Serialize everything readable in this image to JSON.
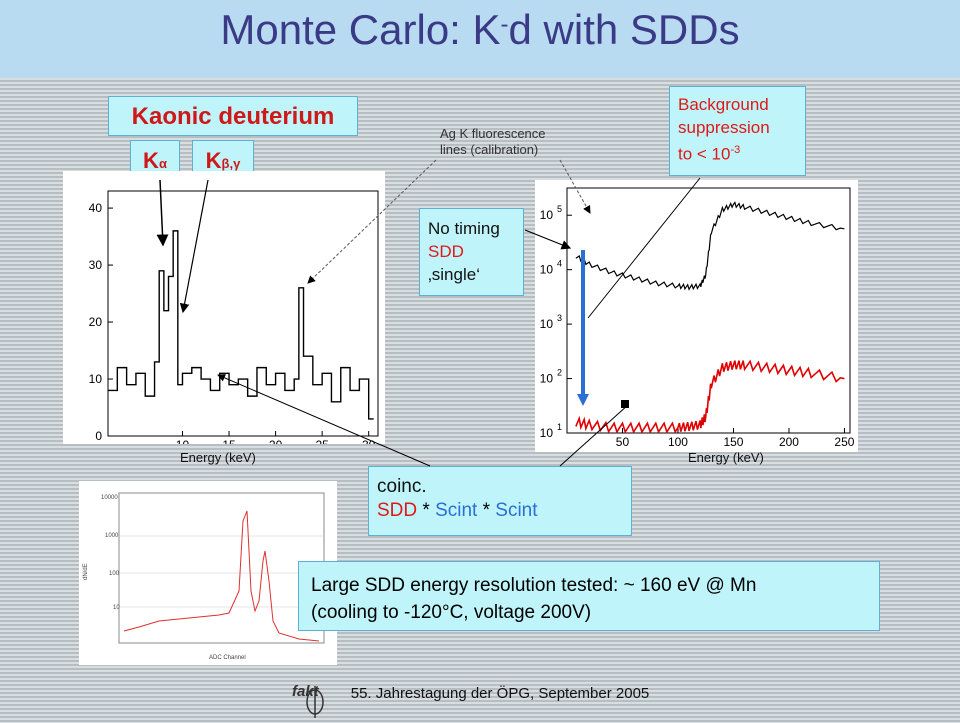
{
  "title": {
    "main": "Monte Carlo: K",
    "sub": "-",
    "rest": "d with SDDs"
  },
  "kaonic_label": "Kaonic deuterium",
  "k_alpha": {
    "letter": "K",
    "sub": "α"
  },
  "k_beta": {
    "letter": "K",
    "sub": "β,γ"
  },
  "ag_note": [
    "Ag K  fluorescence",
    "lines (calibration)"
  ],
  "background_box": {
    "line1": "Background",
    "line2": "suppression",
    "line3": "to < 10",
    "exponent": "-3"
  },
  "no_timing_box": {
    "line1": "No timing",
    "line2": "SDD",
    "line3": "‚single‘"
  },
  "coinc_box": {
    "line1": "coinc.",
    "sdd": "SDD",
    "star1": " * ",
    "scint1": "Scint",
    "star2": " * ",
    "scint2": "Scint"
  },
  "resolution_box": {
    "line1": "Large SDD energy resolution tested: ~ 160 eV @ Mn",
    "line2": "(cooling to -120°C, voltage 200V)"
  },
  "energy_label_left": "Energy (keV)",
  "energy_label_right": "Energy (keV)",
  "footer": "55. Jahrestagung der ÖPG, September 2005",
  "logo_text": "fakt",
  "colors": {
    "title": "#3a3a86",
    "accent_red": "#d01818",
    "blue": "#2a6fd6",
    "cyan_box": "#bff5fa",
    "title_bar": "#b9dbf2"
  },
  "chart_data": [
    {
      "type": "line",
      "x_ticks": [
        "10",
        "15",
        "20",
        "25",
        "30"
      ],
      "y_ticks": [
        "0",
        "10",
        "20",
        "30",
        "40"
      ],
      "xlim": [
        2,
        31
      ],
      "ylim": [
        0,
        43
      ],
      "series": [
        {
          "x": [
            2,
            3,
            4,
            5,
            6,
            7,
            7.5,
            8,
            8.5,
            9,
            9.5,
            10,
            11,
            12,
            13,
            14,
            15,
            16,
            17,
            18,
            19,
            20,
            21,
            22,
            22.5,
            23,
            24,
            25,
            26,
            27,
            28,
            29,
            30
          ],
          "y": [
            8,
            12,
            9,
            11,
            7,
            13,
            29,
            22,
            28,
            36,
            9,
            11,
            12,
            10,
            8,
            11,
            9,
            10,
            7,
            12,
            9,
            11,
            8,
            10,
            26,
            14,
            9,
            11,
            6,
            12,
            8,
            10,
            3
          ]
        }
      ]
    },
    {
      "type": "line",
      "y_scale": "log",
      "x_ticks": [
        "50",
        "100",
        "150",
        "200",
        "250"
      ],
      "y_ticks": [
        "10^1",
        "10^2",
        "10^3",
        "10^4",
        "10^5"
      ],
      "xlim": [
        0,
        255
      ],
      "ylim": [
        1,
        5.5
      ],
      "series": [
        {
          "x": [
            8,
            20,
            40,
            60,
            80,
            100,
            110,
            120,
            125,
            130,
            140,
            150,
            160,
            180,
            200,
            220,
            250
          ],
          "y": [
            4.25,
            4.1,
            3.95,
            3.85,
            3.75,
            3.7,
            3.68,
            3.7,
            3.9,
            4.7,
            5.1,
            5.2,
            5.15,
            5.05,
            4.95,
            4.85,
            4.75
          ]
        },
        {
          "x": [
            8,
            20,
            40,
            60,
            80,
            100,
            110,
            120,
            125,
            130,
            140,
            150,
            160,
            180,
            200,
            220,
            250
          ],
          "y": [
            1.2,
            1.15,
            1.1,
            1.1,
            1.1,
            1.1,
            1.12,
            1.15,
            1.3,
            1.9,
            2.2,
            2.25,
            2.25,
            2.2,
            2.15,
            2.1,
            2.0
          ]
        }
      ]
    }
  ]
}
